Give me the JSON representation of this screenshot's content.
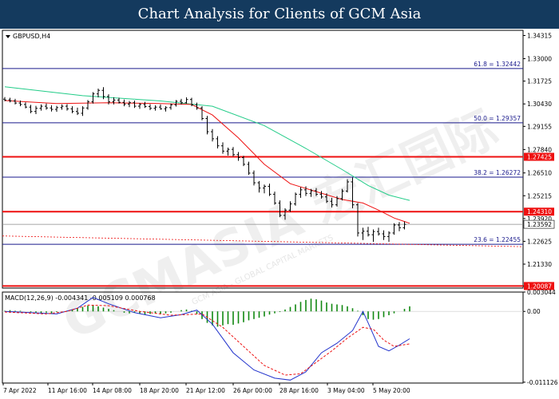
{
  "banner": {
    "title": "Chart Analysis for Clients of GCM Asia"
  },
  "watermark": {
    "text": "GCMASIA 宏汇国际",
    "subtext": "GCM ASIA - GLOBAL CAPITAL MARKETS"
  },
  "colors": {
    "price_bar": "#000000",
    "ma_fast": "#ee1111",
    "ma_slow": "#22cc88",
    "fib_line": "#1a1a8c",
    "sr_line": "#ee1111",
    "sr_label_bg": "#ee1111",
    "macd_line": "#2233cc",
    "signal_line": "#ee1111",
    "histogram": "#118811",
    "current_price_label": "#ffffff"
  },
  "chart_data": [
    {
      "type": "candlestick",
      "title": "GBPUSD,H4",
      "ylim": [
        1.1997,
        1.3461
      ],
      "y_ticks": [
        "1.34315",
        "1.33000",
        "1.31725",
        "1.30430",
        "1.29155",
        "1.27840",
        "1.26510",
        "1.25215",
        "1.23920",
        "1.22625",
        "1.21330",
        "1.20087"
      ],
      "x_tick_labels": [
        "7 Apr 2022",
        "11 Apr 16:00",
        "14 Apr 08:00",
        "18 Apr 20:00",
        "21 Apr 12:00",
        "26 Apr 00:00",
        "28 Apr 16:00",
        "3 May 04:00",
        "5 May 20:00"
      ],
      "fibonacci": [
        {
          "label": "61.8 = 1.32442",
          "value": 1.32442
        },
        {
          "label": "50.0 = 1.29357",
          "value": 1.29357
        },
        {
          "label": "38.2 = 1.26272",
          "value": 1.26272
        },
        {
          "label": "23.6 = 1.22455",
          "value": 1.22455
        }
      ],
      "support_resistance": [
        {
          "label": "1.27425",
          "value": 1.27425
        },
        {
          "label": "1.24310",
          "value": 1.2431
        },
        {
          "label": "1.20087",
          "value": 1.20087
        }
      ],
      "current_price": {
        "label": "1.23592",
        "value": 1.23592
      },
      "ohlc": [
        [
          1.307,
          1.3082,
          1.3058,
          1.3065
        ],
        [
          1.3066,
          1.3078,
          1.3052,
          1.306
        ],
        [
          1.306,
          1.3072,
          1.304,
          1.3048
        ],
        [
          1.3048,
          1.3062,
          1.303,
          1.304
        ],
        [
          1.304,
          1.3052,
          1.3018,
          1.3025
        ],
        [
          1.3025,
          1.3038,
          1.299,
          1.3
        ],
        [
          1.3,
          1.3032,
          1.2985,
          1.3018
        ],
        [
          1.3018,
          1.304,
          1.3005,
          1.303
        ],
        [
          1.303,
          1.3045,
          1.301,
          1.302
        ],
        [
          1.302,
          1.3035,
          1.3,
          1.3012
        ],
        [
          1.3012,
          1.3032,
          1.2998,
          1.3022
        ],
        [
          1.3022,
          1.304,
          1.301,
          1.303
        ],
        [
          1.303,
          1.3042,
          1.3005,
          1.3015
        ],
        [
          1.3015,
          1.303,
          1.299,
          1.3
        ],
        [
          1.3,
          1.3022,
          1.298,
          1.299
        ],
        [
          1.299,
          1.303,
          1.2975,
          1.302
        ],
        [
          1.302,
          1.3065,
          1.301,
          1.3055
        ],
        [
          1.3055,
          1.311,
          1.3045,
          1.31
        ],
        [
          1.31,
          1.313,
          1.308,
          1.312
        ],
        [
          1.312,
          1.3138,
          1.307,
          1.3085
        ],
        [
          1.3085,
          1.3098,
          1.304,
          1.3055
        ],
        [
          1.3055,
          1.308,
          1.304,
          1.3065
        ],
        [
          1.3065,
          1.3078,
          1.3045,
          1.3052
        ],
        [
          1.3052,
          1.3068,
          1.303,
          1.3042
        ],
        [
          1.3042,
          1.306,
          1.3025,
          1.305
        ],
        [
          1.305,
          1.3062,
          1.302,
          1.303
        ],
        [
          1.303,
          1.3048,
          1.3015,
          1.304
        ],
        [
          1.304,
          1.3055,
          1.302,
          1.3028
        ],
        [
          1.3028,
          1.3042,
          1.3008,
          1.3018
        ],
        [
          1.3018,
          1.3035,
          1.3005,
          1.3025
        ],
        [
          1.3025,
          1.304,
          1.301,
          1.3015
        ],
        [
          1.3015,
          1.303,
          1.3,
          1.3022
        ],
        [
          1.3022,
          1.3045,
          1.301,
          1.3038
        ],
        [
          1.3038,
          1.3065,
          1.3028,
          1.3058
        ],
        [
          1.3058,
          1.3072,
          1.304,
          1.305
        ],
        [
          1.305,
          1.308,
          1.3045,
          1.3068
        ],
        [
          1.3068,
          1.3078,
          1.303,
          1.3038
        ],
        [
          1.3038,
          1.305,
          1.301,
          1.302
        ],
        [
          1.302,
          1.303,
          1.295,
          1.296
        ],
        [
          1.296,
          1.2975,
          1.287,
          1.2885
        ],
        [
          1.2885,
          1.29,
          1.283,
          1.2845
        ],
        [
          1.2845,
          1.286,
          1.279,
          1.2805
        ],
        [
          1.2805,
          1.2825,
          1.276,
          1.2775
        ],
        [
          1.2775,
          1.2795,
          1.275,
          1.2785
        ],
        [
          1.2785,
          1.2798,
          1.2745,
          1.2755
        ],
        [
          1.2755,
          1.277,
          1.272,
          1.2738
        ],
        [
          1.2738,
          1.2748,
          1.269,
          1.27
        ],
        [
          1.27,
          1.2715,
          1.264,
          1.265
        ],
        [
          1.265,
          1.2665,
          1.258,
          1.2595
        ],
        [
          1.2595,
          1.2605,
          1.254,
          1.2565
        ],
        [
          1.2565,
          1.2585,
          1.2535,
          1.2575
        ],
        [
          1.2575,
          1.259,
          1.252,
          1.253
        ],
        [
          1.253,
          1.2545,
          1.247,
          1.248
        ],
        [
          1.248,
          1.2495,
          1.24,
          1.241
        ],
        [
          1.241,
          1.245,
          1.2385,
          1.244
        ],
        [
          1.244,
          1.249,
          1.243,
          1.2475
        ],
        [
          1.2475,
          1.254,
          1.2465,
          1.253
        ],
        [
          1.253,
          1.257,
          1.251,
          1.2555
        ],
        [
          1.2555,
          1.2575,
          1.252,
          1.2535
        ],
        [
          1.2535,
          1.256,
          1.2515,
          1.255
        ],
        [
          1.255,
          1.2565,
          1.252,
          1.253
        ],
        [
          1.253,
          1.2548,
          1.2505,
          1.2515
        ],
        [
          1.2515,
          1.2535,
          1.248,
          1.249
        ],
        [
          1.249,
          1.251,
          1.2455,
          1.247
        ],
        [
          1.247,
          1.252,
          1.246,
          1.2505
        ],
        [
          1.2505,
          1.256,
          1.2495,
          1.2548
        ],
        [
          1.2548,
          1.2615,
          1.254,
          1.26
        ],
        [
          1.26,
          1.2625,
          1.245,
          1.247
        ],
        [
          1.247,
          1.248,
          1.229,
          1.231
        ],
        [
          1.231,
          1.234,
          1.227,
          1.232
        ],
        [
          1.232,
          1.2345,
          1.229,
          1.23
        ],
        [
          1.23,
          1.233,
          1.226,
          1.2318
        ],
        [
          1.2318,
          1.234,
          1.2295,
          1.2305
        ],
        [
          1.2305,
          1.2325,
          1.227,
          1.229
        ],
        [
          1.229,
          1.232,
          1.226,
          1.231
        ],
        [
          1.231,
          1.2365,
          1.23,
          1.2355
        ],
        [
          1.2355,
          1.2372,
          1.232,
          1.234
        ],
        [
          1.234,
          1.2375,
          1.233,
          1.2359
        ]
      ],
      "ma_fast": [
        [
          0,
          1.3062
        ],
        [
          10,
          1.3045
        ],
        [
          20,
          1.305
        ],
        [
          30,
          1.3045
        ],
        [
          36,
          1.304
        ],
        [
          40,
          1.298
        ],
        [
          45,
          1.285
        ],
        [
          50,
          1.27
        ],
        [
          55,
          1.259
        ],
        [
          60,
          1.2545
        ],
        [
          65,
          1.25
        ],
        [
          69,
          1.248
        ],
        [
          72,
          1.244
        ],
        [
          75,
          1.2395
        ],
        [
          78,
          1.2365
        ]
      ],
      "ma_slow": [
        [
          0,
          1.314
        ],
        [
          15,
          1.309
        ],
        [
          30,
          1.306
        ],
        [
          40,
          1.303
        ],
        [
          50,
          1.292
        ],
        [
          58,
          1.279
        ],
        [
          65,
          1.267
        ],
        [
          70,
          1.258
        ],
        [
          74,
          1.2525
        ],
        [
          78,
          1.2495
        ]
      ]
    },
    {
      "type": "macd",
      "title": "MACD(12,26,9) -0.004341 -0.005109 0.000768",
      "ylim": [
        -0.01126,
        0.00304
      ],
      "y_ticks": [
        "0.003044",
        "0.00",
        "-0.011126"
      ],
      "macd": [
        [
          0,
          0.0
        ],
        [
          5,
          -0.0002
        ],
        [
          10,
          -0.0004
        ],
        [
          14,
          0.0005
        ],
        [
          17,
          0.0022
        ],
        [
          20,
          0.0012
        ],
        [
          25,
          -0.0002
        ],
        [
          30,
          -0.001
        ],
        [
          34,
          -0.0005
        ],
        [
          37,
          0.0002
        ],
        [
          40,
          -0.002
        ],
        [
          44,
          -0.0065
        ],
        [
          48,
          -0.0092
        ],
        [
          52,
          -0.0105
        ],
        [
          55,
          -0.0108
        ],
        [
          58,
          -0.0095
        ],
        [
          61,
          -0.0065
        ],
        [
          64,
          -0.005
        ],
        [
          67,
          -0.003
        ],
        [
          69,
          0.0
        ],
        [
          70,
          -0.0018
        ],
        [
          72,
          -0.0055
        ],
        [
          74,
          -0.0062
        ],
        [
          76,
          -0.0053
        ],
        [
          78,
          -0.0043
        ]
      ],
      "signal": [
        [
          0,
          -0.0001
        ],
        [
          8,
          -0.0004
        ],
        [
          12,
          0.0
        ],
        [
          16,
          0.001
        ],
        [
          20,
          0.0009
        ],
        [
          26,
          0.0
        ],
        [
          32,
          -0.0006
        ],
        [
          38,
          -0.0004
        ],
        [
          42,
          -0.0025
        ],
        [
          46,
          -0.0055
        ],
        [
          50,
          -0.0085
        ],
        [
          54,
          -0.01
        ],
        [
          57,
          -0.0098
        ],
        [
          60,
          -0.008
        ],
        [
          63,
          -0.0062
        ],
        [
          66,
          -0.0042
        ],
        [
          69,
          -0.0025
        ],
        [
          71,
          -0.0028
        ],
        [
          73,
          -0.0045
        ],
        [
          75,
          -0.0055
        ],
        [
          78,
          -0.0051
        ]
      ],
      "histogram": [
        0.0001,
        0.0002,
        0.0001,
        0.0001,
        0.0,
        -0.0001,
        -0.0002,
        -0.0003,
        -0.0002,
        -0.0003,
        -0.0001,
        0.0,
        0.0001,
        0.0003,
        0.0005,
        0.0007,
        0.0009,
        0.001,
        0.0008,
        0.0006,
        0.0004,
        0.0002,
        0.0,
        -0.0002,
        -0.0003,
        -0.0002,
        -0.0004,
        -0.0005,
        -0.0004,
        -0.0003,
        -0.0004,
        -0.0003,
        -0.0002,
        0.0,
        0.0002,
        0.0003,
        0.0001,
        -0.0004,
        -0.0012,
        -0.0018,
        -0.0022,
        -0.0024,
        -0.0022,
        -0.002,
        -0.0021,
        -0.0019,
        -0.0017,
        -0.0014,
        -0.0012,
        -0.001,
        -0.0008,
        -0.0005,
        -0.0003,
        -0.0001,
        0.0003,
        0.0007,
        0.0011,
        0.0015,
        0.0018,
        0.002,
        0.0019,
        0.0017,
        0.0014,
        0.0012,
        0.0011,
        0.001,
        0.0008,
        0.0005,
        0.0001,
        -0.0006,
        -0.0012,
        -0.0013,
        -0.0012,
        -0.0009,
        -0.0006,
        -0.0003,
        0.0,
        0.0004,
        0.0008
      ]
    }
  ]
}
